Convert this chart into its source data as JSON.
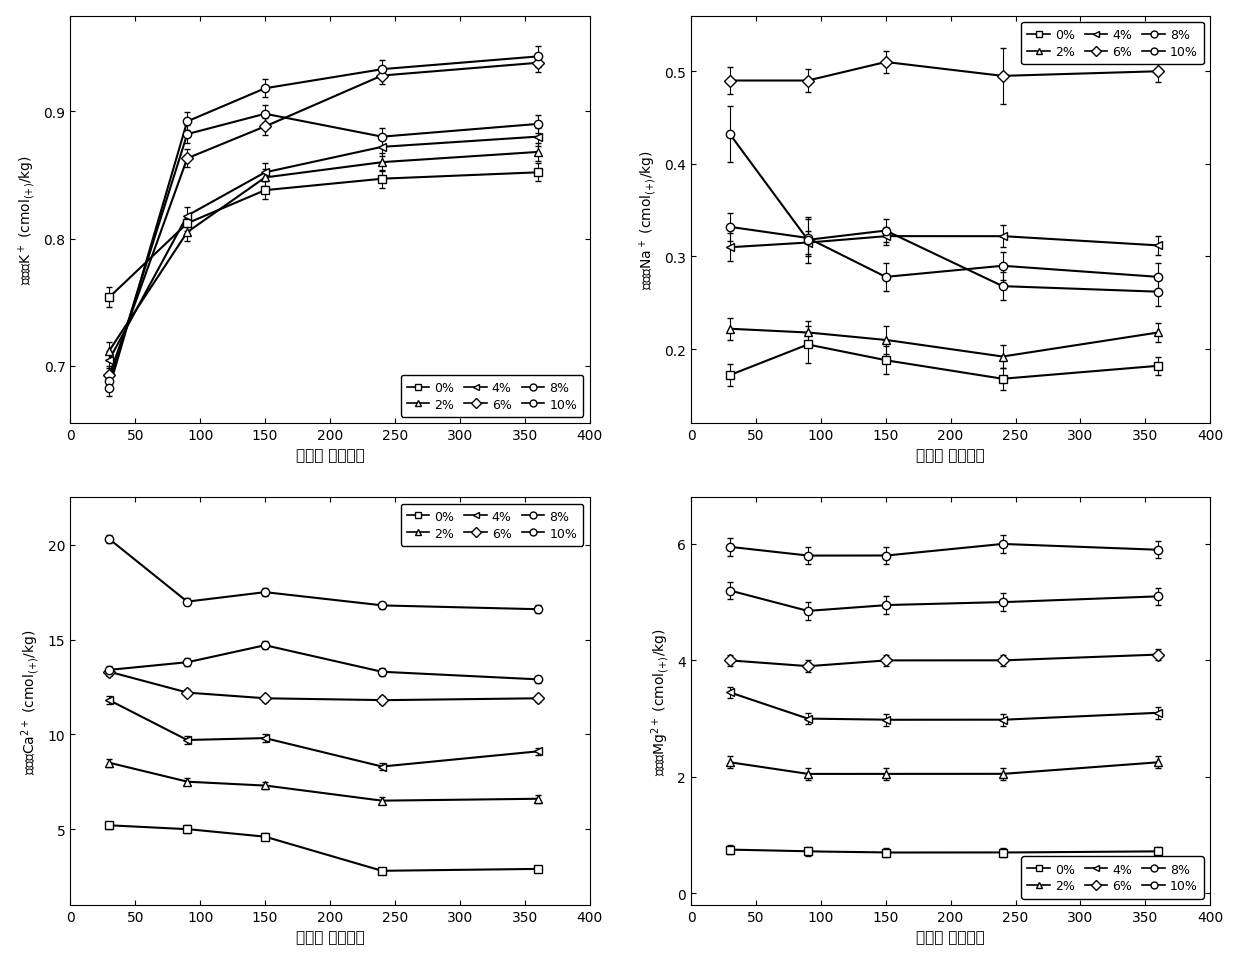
{
  "x": [
    30,
    90,
    150,
    240,
    360
  ],
  "K_data": {
    "0%": [
      0.754,
      0.812,
      0.838,
      0.847,
      0.852
    ],
    "2%": [
      0.712,
      0.805,
      0.848,
      0.86,
      0.868
    ],
    "4%": [
      0.705,
      0.818,
      0.852,
      0.872,
      0.88
    ],
    "6%": [
      0.693,
      0.863,
      0.888,
      0.928,
      0.938
    ],
    "8%": [
      0.688,
      0.882,
      0.898,
      0.88,
      0.89
    ],
    "10%": [
      0.683,
      0.892,
      0.918,
      0.933,
      0.943
    ]
  },
  "K_err": {
    "0%": [
      0.008,
      0.006,
      0.007,
      0.007,
      0.007
    ],
    "2%": [
      0.007,
      0.007,
      0.007,
      0.007,
      0.007
    ],
    "4%": [
      0.007,
      0.007,
      0.007,
      0.007,
      0.007
    ],
    "6%": [
      0.007,
      0.007,
      0.007,
      0.007,
      0.007
    ],
    "8%": [
      0.007,
      0.007,
      0.007,
      0.007,
      0.007
    ],
    "10%": [
      0.007,
      0.007,
      0.007,
      0.007,
      0.008
    ]
  },
  "K_ylim": [
    0.655,
    0.975
  ],
  "K_yticks": [
    0.7,
    0.8,
    0.9
  ],
  "K_ylabel": "cmol_(+)/kg",
  "K_ylabel_ion": "K",
  "Na_data": {
    "0%": [
      0.172,
      0.205,
      0.188,
      0.168,
      0.182
    ],
    "2%": [
      0.222,
      0.218,
      0.21,
      0.192,
      0.218
    ],
    "4%": [
      0.31,
      0.315,
      0.322,
      0.322,
      0.312
    ],
    "6%": [
      0.49,
      0.49,
      0.51,
      0.495,
      0.5
    ],
    "8%": [
      0.332,
      0.32,
      0.278,
      0.29,
      0.278
    ],
    "10%": [
      0.432,
      0.318,
      0.328,
      0.268,
      0.262
    ]
  },
  "Na_err": {
    "0%": [
      0.012,
      0.02,
      0.015,
      0.012,
      0.01
    ],
    "2%": [
      0.012,
      0.012,
      0.015,
      0.012,
      0.01
    ],
    "4%": [
      0.015,
      0.012,
      0.01,
      0.012,
      0.01
    ],
    "6%": [
      0.015,
      0.012,
      0.012,
      0.03,
      0.012
    ],
    "8%": [
      0.015,
      0.02,
      0.015,
      0.015,
      0.015
    ],
    "10%": [
      0.03,
      0.025,
      0.012,
      0.015,
      0.015
    ]
  },
  "Na_ylim": [
    0.12,
    0.56
  ],
  "Na_yticks": [
    0.2,
    0.3,
    0.4,
    0.5
  ],
  "Na_ylabel": "cmol_(+)/kg",
  "Na_ylabel_ion": "Na",
  "Ca_data": {
    "0%": [
      5.2,
      5.0,
      4.6,
      2.8,
      2.9
    ],
    "2%": [
      8.5,
      7.5,
      7.3,
      6.5,
      6.6
    ],
    "4%": [
      11.8,
      9.7,
      9.8,
      8.3,
      9.1
    ],
    "6%": [
      13.3,
      12.2,
      11.9,
      11.8,
      11.9
    ],
    "8%": [
      13.4,
      13.8,
      14.7,
      13.3,
      12.9
    ],
    "10%": [
      20.3,
      17.0,
      17.5,
      16.8,
      16.6
    ]
  },
  "Ca_err": {
    "0%": [
      0.2,
      0.2,
      0.2,
      0.15,
      0.15
    ],
    "2%": [
      0.2,
      0.2,
      0.2,
      0.2,
      0.2
    ],
    "4%": [
      0.2,
      0.2,
      0.2,
      0.2,
      0.2
    ],
    "6%": [
      0.2,
      0.2,
      0.2,
      0.2,
      0.2
    ],
    "8%": [
      0.2,
      0.2,
      0.2,
      0.2,
      0.2
    ],
    "10%": [
      0.2,
      0.2,
      0.2,
      0.2,
      0.2
    ]
  },
  "Ca_ylim": [
    1,
    22.5
  ],
  "Ca_yticks": [
    5,
    10,
    15,
    20
  ],
  "Ca_ylabel": "cmol_(+)/kg",
  "Ca_ylabel_ion": "Ca",
  "Mg_data": {
    "0%": [
      0.75,
      0.72,
      0.7,
      0.7,
      0.72
    ],
    "2%": [
      2.25,
      2.05,
      2.05,
      2.05,
      2.25
    ],
    "4%": [
      3.45,
      3.0,
      2.98,
      2.98,
      3.1
    ],
    "6%": [
      4.0,
      3.9,
      4.0,
      4.0,
      4.1
    ],
    "8%": [
      5.2,
      4.85,
      4.95,
      5.0,
      5.1
    ],
    "10%": [
      5.95,
      5.8,
      5.8,
      6.0,
      5.9
    ]
  },
  "Mg_err": {
    "0%": [
      0.08,
      0.08,
      0.08,
      0.08,
      0.08
    ],
    "2%": [
      0.1,
      0.1,
      0.1,
      0.1,
      0.1
    ],
    "4%": [
      0.1,
      0.1,
      0.1,
      0.1,
      0.1
    ],
    "6%": [
      0.1,
      0.1,
      0.1,
      0.1,
      0.1
    ],
    "8%": [
      0.15,
      0.15,
      0.15,
      0.15,
      0.15
    ],
    "10%": [
      0.15,
      0.15,
      0.15,
      0.15,
      0.15
    ]
  },
  "Mg_ylim": [
    -0.2,
    6.8
  ],
  "Mg_yticks": [
    0,
    2,
    4,
    6
  ],
  "Mg_ylabel": "cmol_(+)/kg",
  "Mg_ylabel_ion": "Mg",
  "xlabel": "培养时 间（天）",
  "xlim": [
    0,
    400
  ],
  "xticks": [
    0,
    50,
    100,
    150,
    200,
    250,
    300,
    350,
    400
  ],
  "series": [
    "0%",
    "2%",
    "4%",
    "6%",
    "8%",
    "10%"
  ],
  "markers": [
    "s",
    "^",
    "<",
    "D",
    "o",
    "o"
  ],
  "marker_size": 6,
  "linewidth": 1.5
}
